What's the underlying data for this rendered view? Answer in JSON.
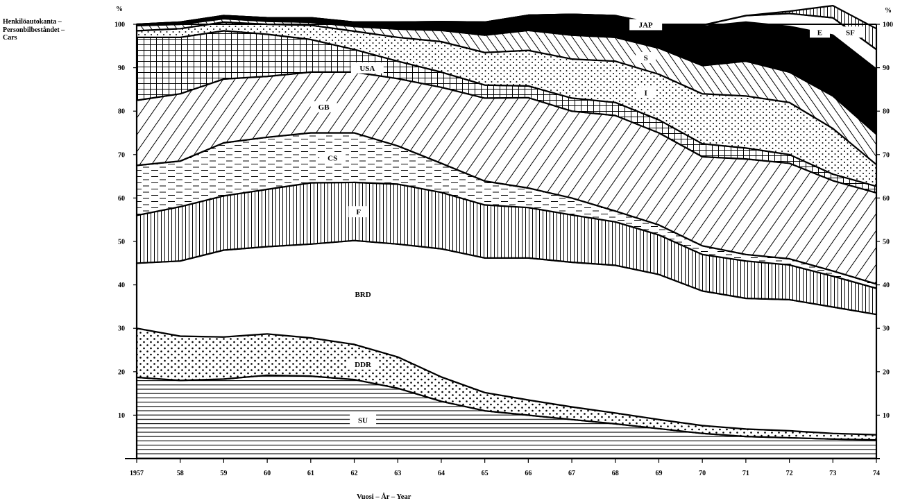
{
  "chart_data": {
    "type": "area",
    "stacked": true,
    "title_lines": [
      "Henkilöautokanta –",
      "Personbilbeståndet –",
      "Cars"
    ],
    "xlabel": "Vuosi – År – Year",
    "ylabel_left": "%",
    "ylabel_right": "%",
    "ylim": [
      0,
      100
    ],
    "yticks": [
      10,
      20,
      30,
      40,
      50,
      60,
      70,
      80,
      90,
      100
    ],
    "x": [
      1957,
      1958,
      1959,
      1960,
      1961,
      1962,
      1963,
      1964,
      1965,
      1966,
      1967,
      1968,
      1969,
      1970,
      1971,
      1972,
      1973,
      1974
    ],
    "xtick_labels": [
      "1957",
      "58",
      "59",
      "60",
      "61",
      "62",
      "63",
      "64",
      "65",
      "66",
      "67",
      "68",
      "69",
      "70",
      "71",
      "72",
      "73",
      "74"
    ],
    "series": [
      {
        "name": "SU",
        "values": [
          18.7,
          18.0,
          18.3,
          19.2,
          19.0,
          18.2,
          16.2,
          13.2,
          11.0,
          10.0,
          9.0,
          8.0,
          6.9,
          5.8,
          5.1,
          4.8,
          4.5,
          4.3
        ]
      },
      {
        "name": "DDR",
        "values": [
          11.3,
          10.2,
          9.7,
          9.5,
          8.8,
          8.1,
          7.2,
          5.6,
          4.2,
          3.5,
          2.9,
          2.5,
          2.1,
          1.8,
          1.7,
          1.6,
          1.3,
          1.2
        ]
      },
      {
        "name": "BRD",
        "values": [
          15.0,
          17.3,
          20.0,
          20.1,
          21.6,
          23.9,
          26.0,
          29.5,
          31.0,
          32.7,
          33.3,
          34.0,
          33.4,
          31.0,
          30.1,
          30.2,
          29.1,
          27.7
        ]
      },
      {
        "name": "F",
        "values": [
          11.0,
          12.5,
          12.5,
          13.2,
          14.1,
          13.4,
          13.8,
          13.0,
          12.2,
          11.6,
          10.9,
          10.0,
          9.1,
          8.4,
          8.6,
          8.0,
          7.1,
          6.0
        ]
      },
      {
        "name": "CS",
        "values": [
          11.5,
          10.5,
          12.2,
          12.0,
          11.5,
          11.4,
          8.8,
          6.7,
          5.5,
          4.5,
          3.9,
          2.5,
          2.3,
          2.0,
          1.5,
          1.4,
          1.2,
          1.0
        ]
      },
      {
        "name": "GB",
        "values": [
          15.0,
          15.5,
          14.7,
          14.0,
          14.0,
          14.0,
          15.5,
          17.5,
          19.1,
          20.8,
          20.0,
          22.0,
          21.2,
          20.5,
          22.0,
          22.0,
          20.8,
          21.0
        ]
      },
      {
        "name": "USA",
        "values": [
          14.5,
          13.0,
          11.1,
          9.7,
          7.5,
          5.2,
          4.0,
          3.5,
          3.0,
          2.7,
          3.0,
          3.0,
          3.0,
          3.0,
          2.5,
          2.0,
          1.5,
          1.5
        ]
      },
      {
        "name": "I",
        "values": [
          1.5,
          2.0,
          2.0,
          2.3,
          3.3,
          4.2,
          5.5,
          7.0,
          7.5,
          8.2,
          9.0,
          9.5,
          10.5,
          11.5,
          12.0,
          12.0,
          10.5,
          5.0
        ]
      },
      {
        "name": "S",
        "values": [
          1.2,
          1.0,
          0.8,
          0.7,
          0.7,
          1.1,
          1.9,
          2.6,
          4.0,
          4.6,
          5.5,
          5.5,
          6.0,
          6.5,
          8.0,
          7.0,
          7.5,
          7.0
        ]
      },
      {
        "name": "JAP",
        "values": [
          0.3,
          0.5,
          0.7,
          0.8,
          1.0,
          1.0,
          1.6,
          2.0,
          3.0,
          3.5,
          4.8,
          5.0,
          5.5,
          9.0,
          9.0,
          10.5,
          14.0,
          15.0
        ]
      },
      {
        "name": "E",
        "values": [
          0,
          0,
          0,
          0,
          0,
          0,
          0,
          0,
          0,
          0,
          0,
          0,
          0,
          0.3,
          1.5,
          3.0,
          4.0,
          4.5
        ]
      },
      {
        "name": "SF",
        "values": [
          0,
          0,
          0,
          0,
          0,
          0,
          0,
          0,
          0,
          0,
          0,
          0,
          0,
          0,
          0,
          0.5,
          2.8,
          4.8
        ]
      }
    ],
    "patterns": {
      "SU": "horizontal-lines",
      "DDR": "dots",
      "BRD": "white",
      "F": "vertical-lines",
      "CS": "dashes",
      "GB": "diagonal-lines",
      "USA": "grid",
      "I": "dots",
      "S": "back-diagonal-lines",
      "JAP": "black",
      "E": "white",
      "SF": "vertical-lines"
    },
    "colors": {
      "ink": "#000000",
      "paper": "#ffffff"
    }
  }
}
